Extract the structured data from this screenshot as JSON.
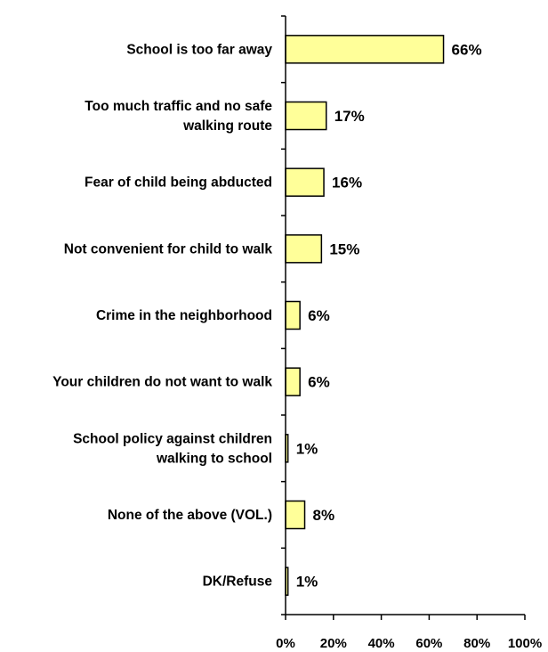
{
  "chart_data": {
    "type": "bar",
    "orientation": "horizontal",
    "categories": [
      "School is too far away",
      "Too much traffic and no safe walking route",
      "Fear of child being abducted",
      "Not convenient for child to walk",
      "Crime in the neighborhood",
      "Your children do not want to walk",
      "School policy against children walking to school",
      "None of the above (VOL.)",
      "DK/Refuse"
    ],
    "category_lines": [
      [
        "School is too far away"
      ],
      [
        "Too much traffic and no safe",
        "walking route"
      ],
      [
        "Fear of child being abducted"
      ],
      [
        "Not convenient for child to walk"
      ],
      [
        "Crime in the neighborhood"
      ],
      [
        "Your children do not want to walk"
      ],
      [
        "School policy against children",
        "walking to school"
      ],
      [
        "None of the above (VOL.)"
      ],
      [
        "DK/Refuse"
      ]
    ],
    "values": [
      66,
      17,
      16,
      15,
      6,
      6,
      1,
      8,
      1
    ],
    "value_labels": [
      "66%",
      "17%",
      "16%",
      "15%",
      "6%",
      "6%",
      "1%",
      "8%",
      "1%"
    ],
    "xlim": [
      0,
      100
    ],
    "x_ticks": [
      0,
      20,
      40,
      60,
      80,
      100
    ],
    "x_tick_labels": [
      "0%",
      "20%",
      "40%",
      "60%",
      "80%",
      "100%"
    ],
    "title": "",
    "xlabel": "",
    "ylabel": "",
    "grid": false,
    "legend": "none",
    "bar_color": "#ffff99",
    "edge_color": "#000000"
  }
}
